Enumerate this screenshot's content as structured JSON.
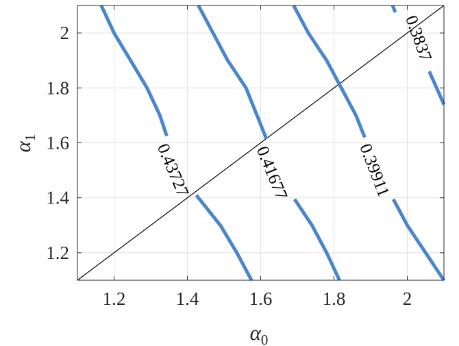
{
  "chart_data": {
    "type": "contour",
    "xlabel": "α",
    "xlabel_sub": "0",
    "ylabel": "α",
    "ylabel_sub": "1",
    "xlim": [
      1.1,
      2.1
    ],
    "ylim": [
      1.1,
      2.1
    ],
    "xticks": [
      1.2,
      1.4,
      1.6,
      1.8,
      2.0
    ],
    "xtick_labels": [
      "1.2",
      "1.4",
      "1.6",
      "1.8",
      "2"
    ],
    "yticks": [
      1.2,
      1.4,
      1.6,
      1.8,
      2.0
    ],
    "ytick_labels": [
      "1.2",
      "1.4",
      "1.6",
      "1.8",
      "2"
    ],
    "grid": true,
    "contour_color": "#4a86c8",
    "diagonal_line": {
      "x": [
        1.1,
        2.1
      ],
      "y": [
        1.1,
        2.1
      ],
      "color": "#000000"
    },
    "contours": [
      {
        "level": "0.43727",
        "points": [
          [
            1.165,
            2.1
          ],
          [
            1.2,
            2.0
          ],
          [
            1.245,
            1.9
          ],
          [
            1.29,
            1.8
          ],
          [
            1.325,
            1.7
          ],
          [
            1.35,
            1.6
          ],
          [
            1.38,
            1.5
          ],
          [
            1.43,
            1.4
          ],
          [
            1.49,
            1.3
          ],
          [
            1.535,
            1.2
          ],
          [
            1.575,
            1.1
          ]
        ],
        "label_at": [
          1.36,
          1.5
        ],
        "label_angle": 67
      },
      {
        "level": "0.41677",
        "points": [
          [
            1.43,
            2.1
          ],
          [
            1.47,
            2.0
          ],
          [
            1.51,
            1.9
          ],
          [
            1.56,
            1.8
          ],
          [
            1.59,
            1.7
          ],
          [
            1.62,
            1.6
          ],
          [
            1.65,
            1.5
          ],
          [
            1.69,
            1.4
          ],
          [
            1.74,
            1.3
          ],
          [
            1.78,
            1.2
          ],
          [
            1.815,
            1.1
          ]
        ],
        "label_at": [
          1.63,
          1.49
        ],
        "label_angle": 68
      },
      {
        "level": "0.39911",
        "points": [
          [
            1.69,
            2.1
          ],
          [
            1.73,
            2.0
          ],
          [
            1.78,
            1.9
          ],
          [
            1.82,
            1.8
          ],
          [
            1.86,
            1.7
          ],
          [
            1.89,
            1.6
          ],
          [
            1.92,
            1.5
          ],
          [
            1.96,
            1.4
          ],
          [
            2.0,
            1.3
          ],
          [
            2.05,
            1.2
          ],
          [
            2.1,
            1.1
          ]
        ],
        "label_at": [
          1.91,
          1.5
        ],
        "label_angle": 69
      },
      {
        "level": "0.3837",
        "points": [
          [
            1.96,
            2.1
          ],
          [
            1.975,
            2.05
          ],
          [
            2.01,
            1.98
          ],
          [
            2.06,
            1.86
          ],
          [
            2.1,
            1.74
          ]
        ],
        "label_at": [
          2.03,
          1.98
        ],
        "label_angle": 70
      }
    ]
  }
}
